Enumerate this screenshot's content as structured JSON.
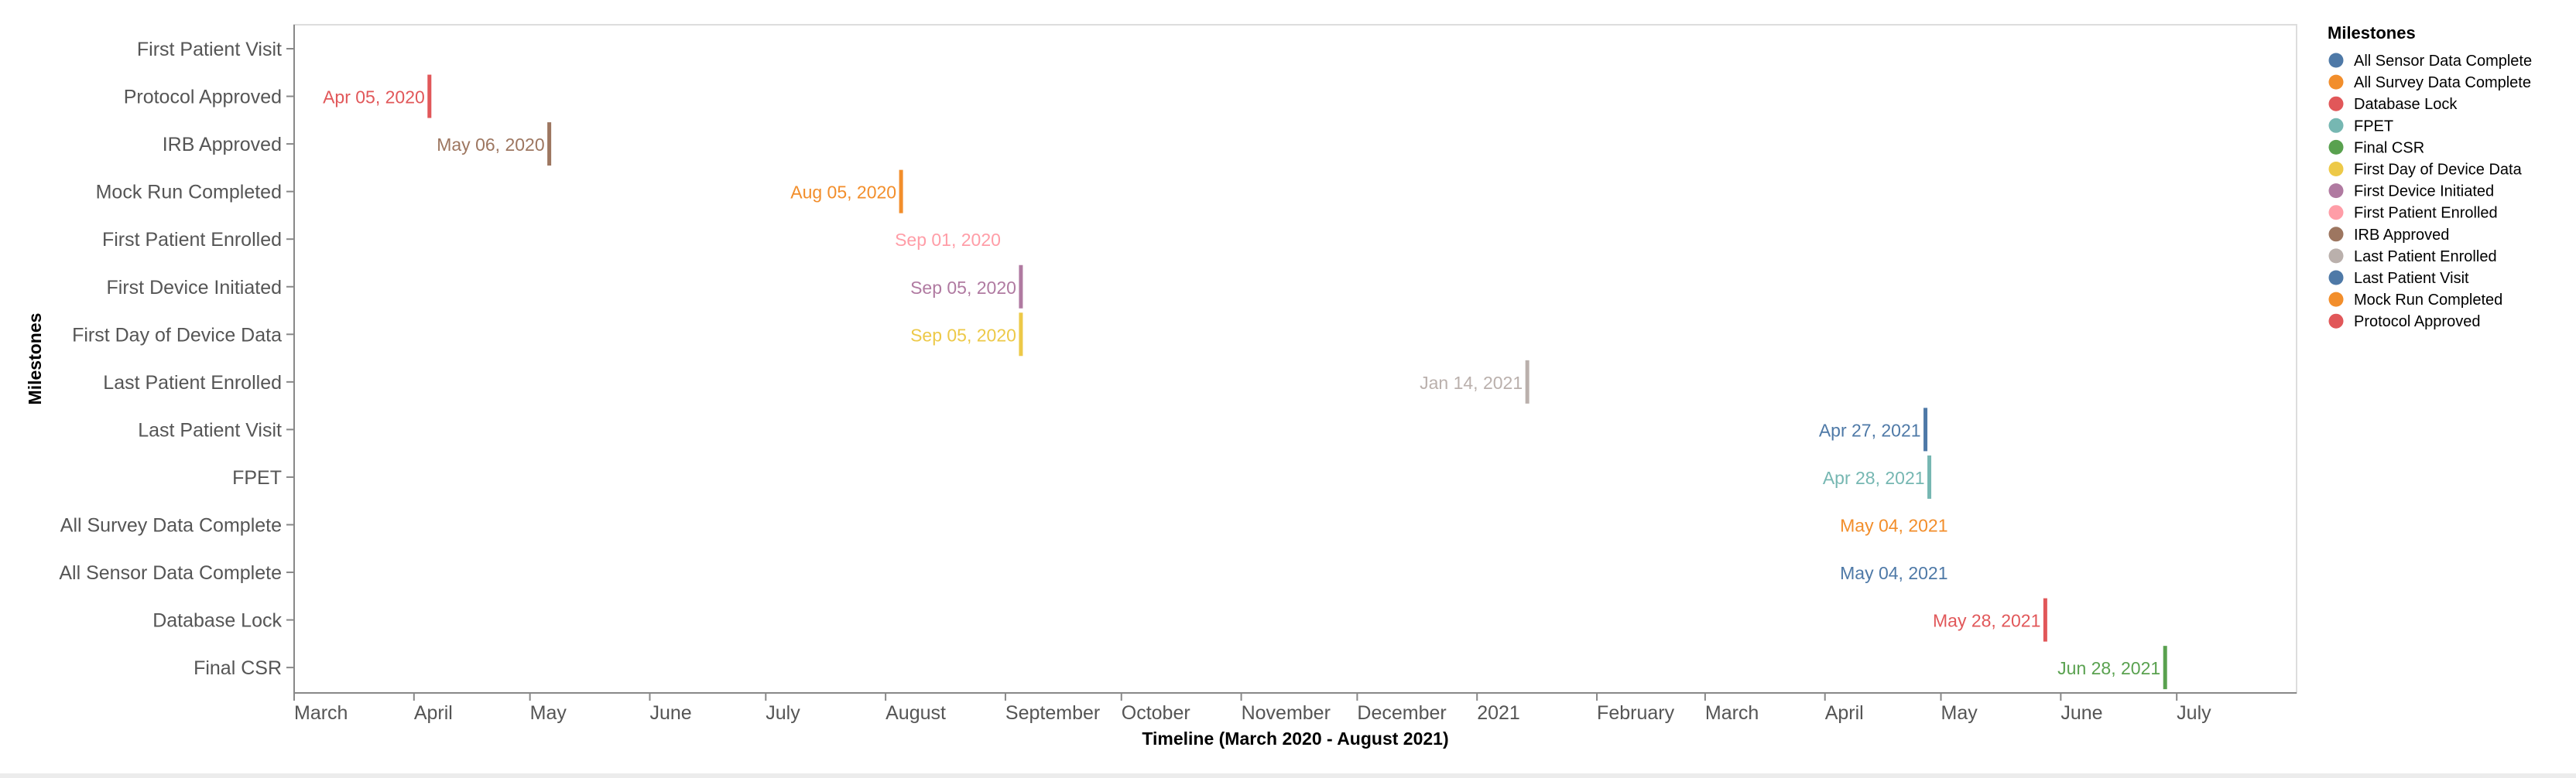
{
  "chart_data": {
    "type": "timeline",
    "xlabel": "Timeline (March 2020 - August 2021)",
    "ylabel": "Milestones",
    "xlim": [
      "2020-03-01",
      "2021-08-01"
    ],
    "x_ticks": [
      {
        "date": "2020-03-01",
        "label": "March"
      },
      {
        "date": "2020-04-01",
        "label": "April"
      },
      {
        "date": "2020-05-01",
        "label": "May"
      },
      {
        "date": "2020-06-01",
        "label": "June"
      },
      {
        "date": "2020-07-01",
        "label": "July"
      },
      {
        "date": "2020-08-01",
        "label": "August"
      },
      {
        "date": "2020-09-01",
        "label": "September"
      },
      {
        "date": "2020-10-01",
        "label": "October"
      },
      {
        "date": "2020-11-01",
        "label": "November"
      },
      {
        "date": "2020-12-01",
        "label": "December"
      },
      {
        "date": "2021-01-01",
        "label": "2021"
      },
      {
        "date": "2021-02-01",
        "label": "February"
      },
      {
        "date": "2021-03-01",
        "label": "March"
      },
      {
        "date": "2021-04-01",
        "label": "April"
      },
      {
        "date": "2021-05-01",
        "label": "May"
      },
      {
        "date": "2021-06-01",
        "label": "June"
      },
      {
        "date": "2021-07-01",
        "label": "July"
      }
    ],
    "categories": [
      "First Patient Visit",
      "Protocol Approved",
      "IRB Approved",
      "Mock Run Completed",
      "First Patient Enrolled",
      "First Device Initiated",
      "First Day of Device Data",
      "Last Patient Enrolled",
      "Last Patient Visit",
      "FPET",
      "All Survey Data Complete",
      "All Sensor Data Complete",
      "Database Lock",
      "Final CSR"
    ],
    "points": [
      {
        "milestone": "Protocol Approved",
        "date": "2020-04-05",
        "label": "Apr 05, 2020",
        "color": "#e15759",
        "marker": true
      },
      {
        "milestone": "IRB Approved",
        "date": "2020-05-06",
        "label": "May 06, 2020",
        "color": "#9d7660",
        "marker": true
      },
      {
        "milestone": "Mock Run Completed",
        "date": "2020-08-05",
        "label": "Aug 05, 2020",
        "color": "#f28e2b",
        "marker": true
      },
      {
        "milestone": "First Patient Enrolled",
        "date": "2020-09-01",
        "label": "Sep 01, 2020",
        "color": "#ff9da7",
        "marker": false
      },
      {
        "milestone": "First Device Initiated",
        "date": "2020-09-05",
        "label": "Sep 05, 2020",
        "color": "#b07aa1",
        "marker": true
      },
      {
        "milestone": "First Day of Device Data",
        "date": "2020-09-05",
        "label": "Sep 05, 2020",
        "color": "#edc948",
        "marker": true
      },
      {
        "milestone": "Last Patient Enrolled",
        "date": "2021-01-14",
        "label": "Jan 14, 2021",
        "color": "#bab0ac",
        "marker": true
      },
      {
        "milestone": "Last Patient Visit",
        "date": "2021-04-27",
        "label": "Apr 27, 2021",
        "color": "#4e79a7",
        "marker": true
      },
      {
        "milestone": "FPET",
        "date": "2021-04-28",
        "label": "Apr 28, 2021",
        "color": "#76b7b2",
        "marker": true
      },
      {
        "milestone": "All Survey Data Complete",
        "date": "2021-05-04",
        "label": "May 04, 2021",
        "color": "#f28e2b",
        "marker": false
      },
      {
        "milestone": "All Sensor Data Complete",
        "date": "2021-05-04",
        "label": "May 04, 2021",
        "color": "#4e79a7",
        "marker": false
      },
      {
        "milestone": "Database Lock",
        "date": "2021-05-28",
        "label": "May 28, 2021",
        "color": "#e15759",
        "marker": true
      },
      {
        "milestone": "Final CSR",
        "date": "2021-06-28",
        "label": "Jun 28, 2021",
        "color": "#59a14f",
        "marker": true
      }
    ],
    "legend": {
      "title": "Milestones",
      "position": "right",
      "items": [
        {
          "label": "All Sensor Data Complete",
          "color": "#4e79a7"
        },
        {
          "label": "All Survey Data Complete",
          "color": "#f28e2b"
        },
        {
          "label": "Database Lock",
          "color": "#e15759"
        },
        {
          "label": "FPET",
          "color": "#76b7b2"
        },
        {
          "label": "Final CSR",
          "color": "#59a14f"
        },
        {
          "label": "First Day of Device Data",
          "color": "#edc948"
        },
        {
          "label": "First Device Initiated",
          "color": "#b07aa1"
        },
        {
          "label": "First Patient Enrolled",
          "color": "#ff9da7"
        },
        {
          "label": "IRB Approved",
          "color": "#9d7660"
        },
        {
          "label": "Last Patient Enrolled",
          "color": "#bab0ac"
        },
        {
          "label": "Last Patient Visit",
          "color": "#4e79a7"
        },
        {
          "label": "Mock Run Completed",
          "color": "#f28e2b"
        },
        {
          "label": "Protocol Approved",
          "color": "#e15759"
        }
      ]
    },
    "grid": false
  }
}
